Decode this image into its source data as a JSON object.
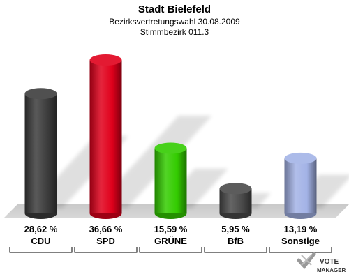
{
  "chart_data": {
    "type": "bar",
    "title": "Stadt Bielefeld",
    "subtitle_lines": [
      "Bezirksvertretungswahl 30.08.2009",
      "Stimmbezirk 011.3"
    ],
    "categories": [
      "CDU",
      "SPD",
      "GRÜNE",
      "BfB",
      "Sonstige"
    ],
    "values": [
      28.62,
      36.66,
      15.59,
      5.95,
      13.19
    ],
    "value_labels": [
      "28,62 %",
      "36,66 %",
      "15,59 %",
      "5,95 %",
      "13,19 %"
    ],
    "colors": [
      "#3d3d3d",
      "#e0001b",
      "#33cc00",
      "#4a4a4a",
      "#a3b3e6"
    ],
    "ylim": [
      0,
      40
    ],
    "grid": false,
    "legend": "none"
  },
  "logo": {
    "line1": "VOTE",
    "line2": "MANAGER"
  }
}
